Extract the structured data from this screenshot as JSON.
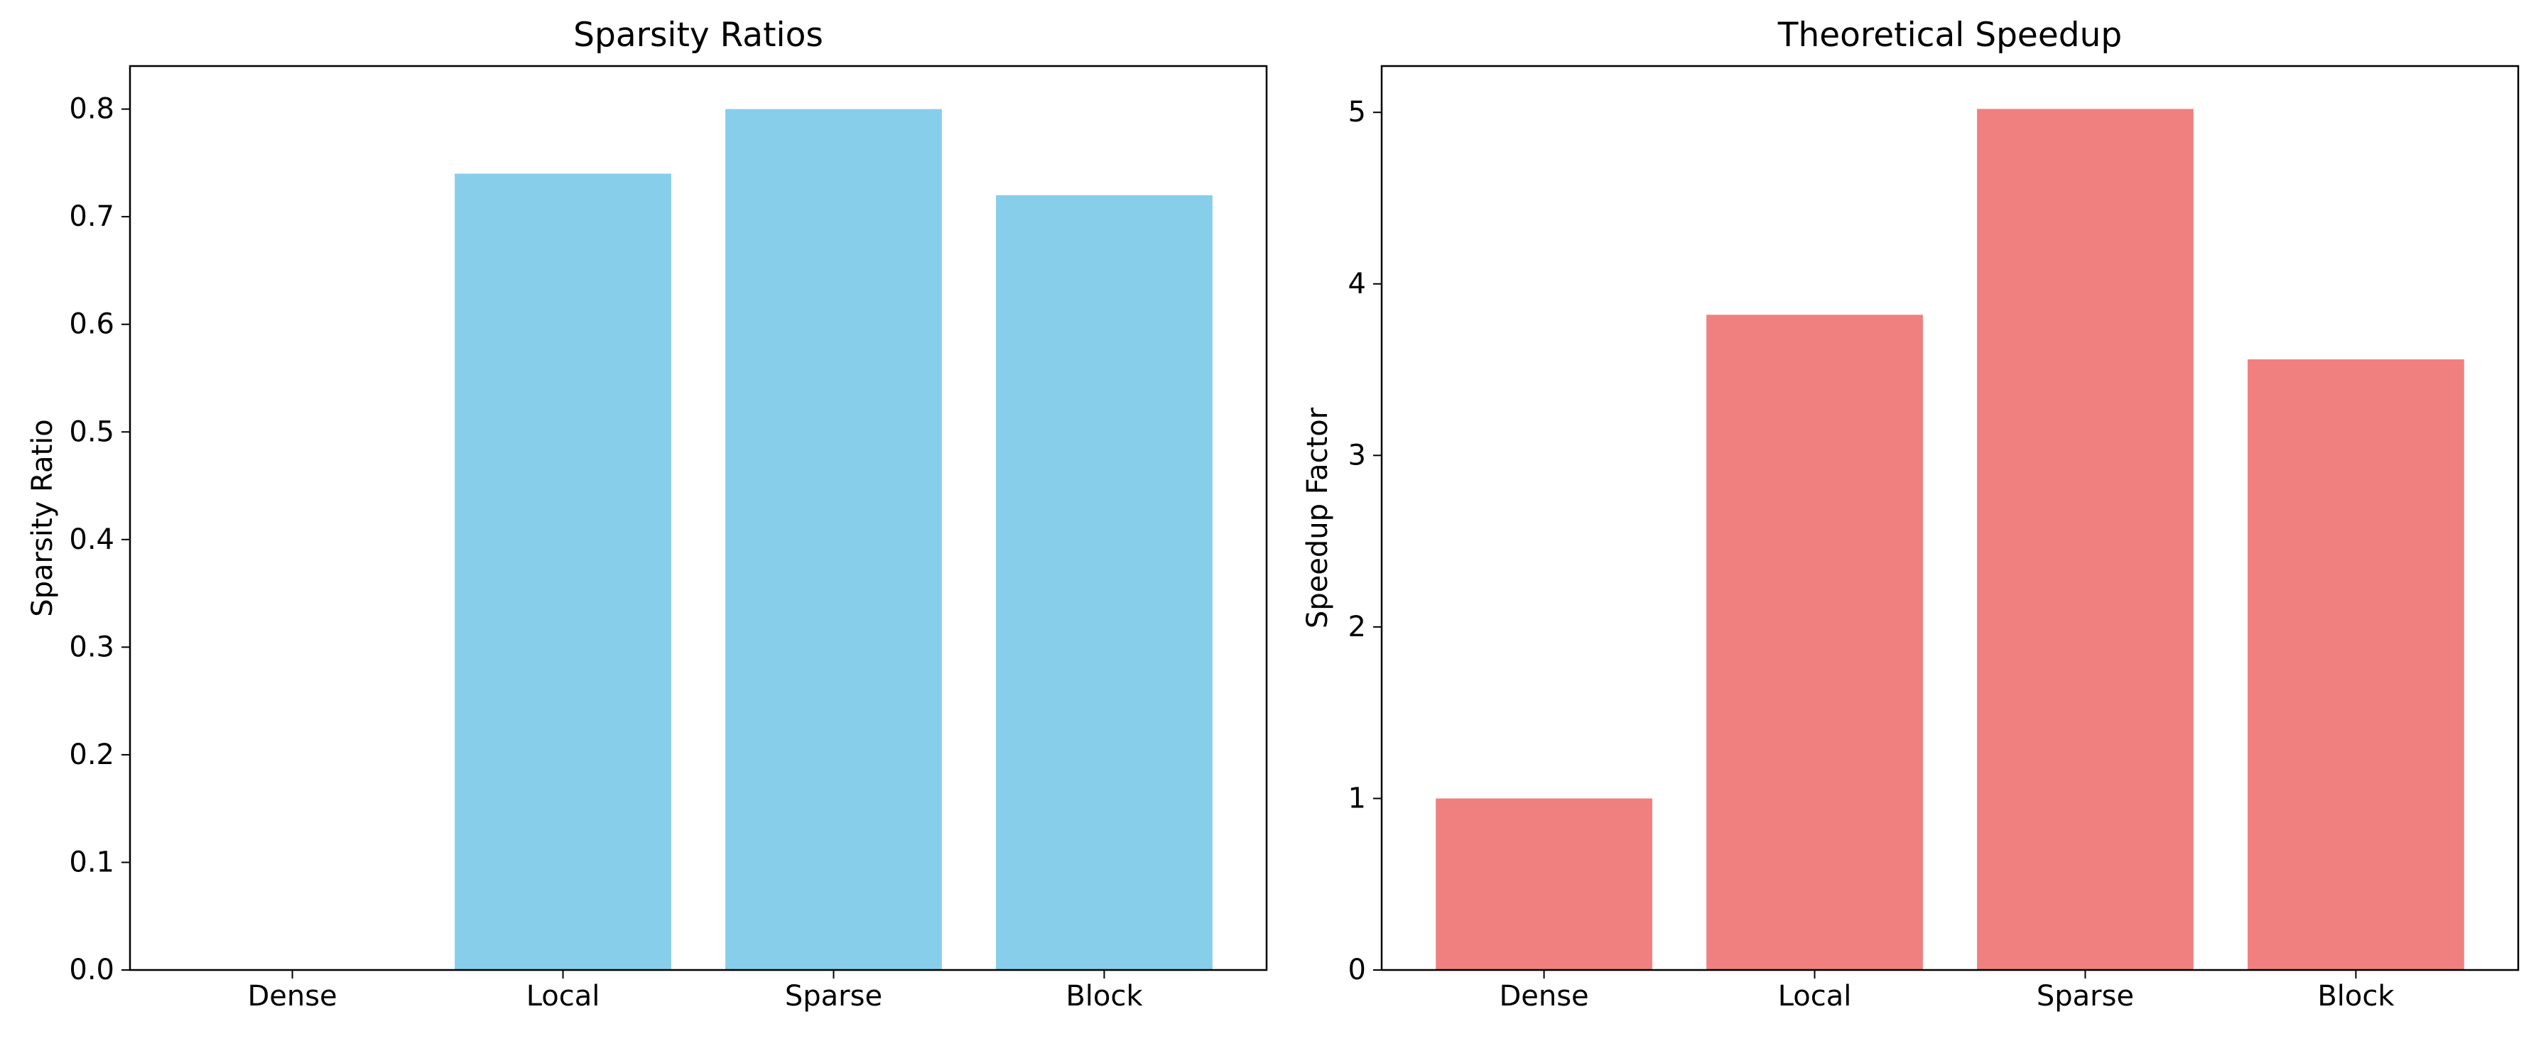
{
  "chart_data": [
    {
      "type": "bar",
      "title": "Sparsity Ratios",
      "xlabel": "",
      "ylabel": "Sparsity Ratio",
      "categories": [
        "Dense",
        "Local",
        "Sparse",
        "Block"
      ],
      "values": [
        0.0,
        0.74,
        0.8,
        0.72
      ],
      "ylim": [
        0,
        0.84
      ],
      "yticks": [
        0.0,
        0.1,
        0.2,
        0.3,
        0.4,
        0.5,
        0.6,
        0.7,
        0.8
      ],
      "ytick_labels": [
        "0.0",
        "0.1",
        "0.2",
        "0.3",
        "0.4",
        "0.5",
        "0.6",
        "0.7",
        "0.8"
      ],
      "color": "#87CEEB",
      "grid": false,
      "legend": false
    },
    {
      "type": "bar",
      "title": "Theoretical Speedup",
      "xlabel": "",
      "ylabel": "Speedup Factor",
      "categories": [
        "Dense",
        "Local",
        "Sparse",
        "Block"
      ],
      "values": [
        1.0,
        3.82,
        5.02,
        3.56
      ],
      "ylim": [
        0,
        5.27
      ],
      "yticks": [
        0,
        1,
        2,
        3,
        4,
        5
      ],
      "ytick_labels": [
        "0",
        "1",
        "2",
        "3",
        "4",
        "5"
      ],
      "color": "#F08080",
      "grid": false,
      "legend": false
    }
  ]
}
